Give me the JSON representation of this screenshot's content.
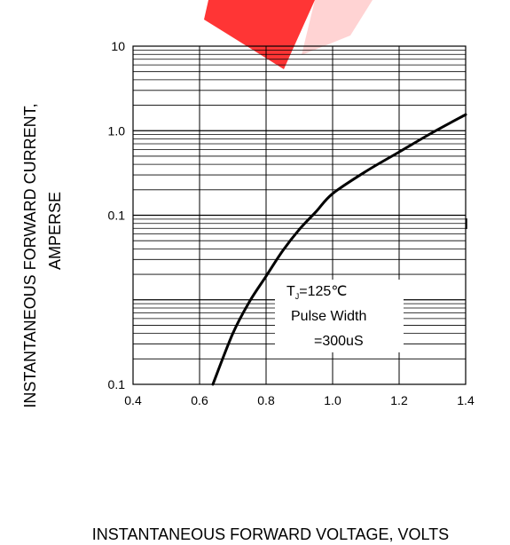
{
  "chart_data": {
    "type": "line",
    "xlabel": "INSTANTANEOUS FORWARD VOLTAGE,  VOLTS",
    "ylabel_line1": "INSTANTANEOUS FORWARD CURRENT,",
    "ylabel_line2": "AMPERSE",
    "x_ticks": [
      "0.4",
      "0.6",
      "0.8",
      "1.0",
      "1.2",
      "1.4"
    ],
    "y_ticks": [
      "10",
      "1.0",
      "0.1",
      "0.1"
    ],
    "xlim": [
      0.4,
      1.4
    ],
    "ylim": [
      0.001,
      10
    ],
    "yscale": "log",
    "grid": true,
    "annotation": {
      "tj_prefix": "T",
      "tj_sub": "J",
      "tj_value": "=125℃",
      "line2": "Pulse Width",
      "line3": "=300uS"
    },
    "series": [
      {
        "x": [
          0.64,
          0.7,
          0.75,
          0.8,
          0.85,
          0.9,
          0.95,
          1.0,
          1.1,
          1.2,
          1.3,
          1.4
        ],
        "y": [
          0.001,
          0.004,
          0.0095,
          0.019,
          0.038,
          0.068,
          0.11,
          0.18,
          0.33,
          0.56,
          0.95,
          1.55
        ]
      }
    ]
  },
  "colors": {
    "accent": "#ff0000",
    "line": "#000000"
  }
}
